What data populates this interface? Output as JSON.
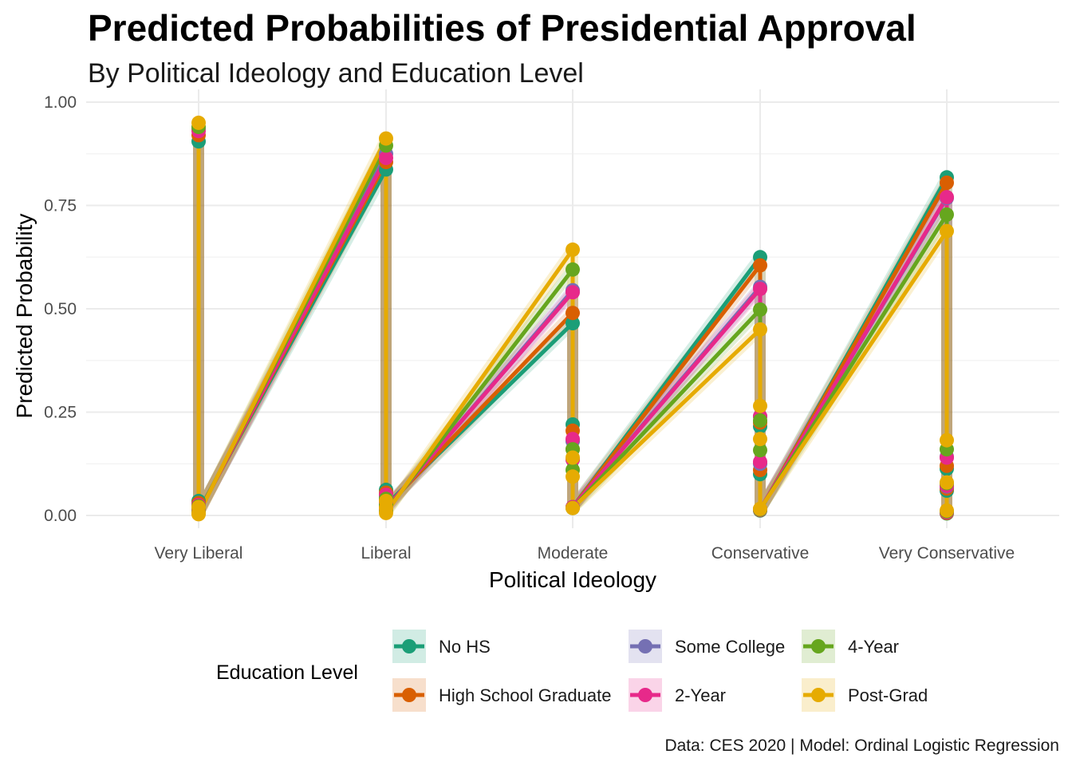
{
  "chart_data": {
    "type": "line",
    "title": "Predicted Probabilities of Presidential Approval",
    "subtitle": "By Political Ideology and Education Level",
    "xlabel": "Political Ideology",
    "ylabel": "Predicted Probability",
    "caption": "Data: CES 2020 | Model: Ordinal Logistic Regression",
    "categories": [
      "Very Liberal",
      "Liberal",
      "Moderate",
      "Conservative",
      "Very Conservative"
    ],
    "ylim": [
      0,
      1
    ],
    "yticks": [
      "0.00",
      "0.25",
      "0.50",
      "0.75",
      "1.00"
    ],
    "grid": true,
    "legend": {
      "title": "Education Level",
      "position": "bottom"
    },
    "series": [
      {
        "name": "No HS",
        "color": "#1B9E77",
        "values": [
          [
            0.905,
            0.035,
            0.015,
            0.01
          ],
          [
            0.837,
            0.062,
            0.04,
            0.025
          ],
          [
            0.465,
            0.22,
            0.18,
            0.02
          ],
          [
            0.625,
            0.215,
            0.1,
            0.012
          ],
          [
            0.818,
            0.113,
            0.06,
            0.005
          ]
        ]
      },
      {
        "name": "High School Graduate",
        "color": "#D95F02",
        "values": [
          [
            0.92,
            0.03,
            0.012,
            0.008
          ],
          [
            0.855,
            0.055,
            0.035,
            0.02
          ],
          [
            0.49,
            0.205,
            0.16,
            0.02
          ],
          [
            0.605,
            0.225,
            0.11,
            0.013
          ],
          [
            0.805,
            0.12,
            0.065,
            0.006
          ]
        ]
      },
      {
        "name": "Some College",
        "color": "#7570B3",
        "values": [
          [
            0.935,
            0.025,
            0.01,
            0.006
          ],
          [
            0.875,
            0.045,
            0.03,
            0.015
          ],
          [
            0.545,
            0.18,
            0.135,
            0.02
          ],
          [
            0.553,
            0.24,
            0.125,
            0.014
          ],
          [
            0.768,
            0.142,
            0.07,
            0.008
          ]
        ]
      },
      {
        "name": "2-Year",
        "color": "#E7298A",
        "values": [
          [
            0.93,
            0.025,
            0.01,
            0.007
          ],
          [
            0.865,
            0.05,
            0.032,
            0.017
          ],
          [
            0.54,
            0.185,
            0.135,
            0.02
          ],
          [
            0.548,
            0.24,
            0.13,
            0.015
          ],
          [
            0.77,
            0.14,
            0.072,
            0.008
          ]
        ]
      },
      {
        "name": "4-Year",
        "color": "#66A61E",
        "values": [
          [
            0.94,
            0.022,
            0.008,
            0.005
          ],
          [
            0.895,
            0.04,
            0.025,
            0.01
          ],
          [
            0.595,
            0.16,
            0.11,
            0.018
          ],
          [
            0.498,
            0.23,
            0.158,
            0.015
          ],
          [
            0.728,
            0.16,
            0.078,
            0.01
          ]
        ]
      },
      {
        "name": "Post-Grad",
        "color": "#E6AB02",
        "values": [
          [
            0.95,
            0.02,
            0.006,
            0.003
          ],
          [
            0.912,
            0.035,
            0.018,
            0.006
          ],
          [
            0.643,
            0.14,
            0.094,
            0.018
          ],
          [
            0.45,
            0.265,
            0.185,
            0.016
          ],
          [
            0.688,
            0.182,
            0.08,
            0.012
          ]
        ]
      }
    ]
  }
}
